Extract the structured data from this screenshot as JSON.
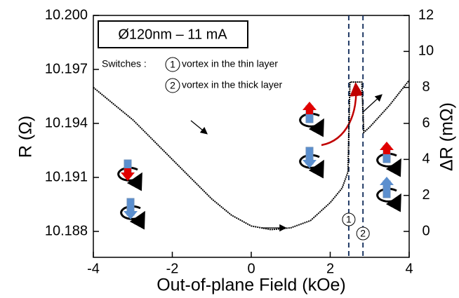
{
  "chart_data": {
    "type": "line",
    "title": "Ø120nm – 11 mA",
    "x_label": "Out-of-plane Field (kOe)",
    "y_label": "R (Ω)",
    "y2_label": "ΔR (mΩ)",
    "annotations": {
      "switches": "Switches :",
      "switch_labels": [
        "1",
        "2"
      ],
      "switch_texts": [
        "vortex in the thin layer",
        "vortex in the thick layer"
      ]
    },
    "switch_fields": [
      2.47,
      2.83
    ],
    "x": [
      -4,
      -3.5,
      -3,
      -2.5,
      -2,
      -1.5,
      -1,
      -0.5,
      0,
      0.5,
      1,
      1.5,
      2,
      2.3,
      2.45,
      2.5,
      2.8,
      2.85,
      3,
      3.5,
      4
    ],
    "values": [
      10.196,
      10.1951,
      10.1942,
      10.1931,
      10.192,
      10.1909,
      10.1898,
      10.1889,
      10.1883,
      10.1881,
      10.1882,
      10.1886,
      10.1896,
      10.1904,
      10.1913,
      10.1963,
      10.1963,
      10.1935,
      10.1938,
      10.195,
      10.1964
    ],
    "color": "#000000",
    "xlim": [
      -4,
      4
    ],
    "xticks": [
      -4,
      -2,
      0,
      2,
      4
    ],
    "ylim": [
      10.18656,
      10.2
    ],
    "yticks": [
      10.188,
      10.191,
      10.194,
      10.197,
      {
        "value": 10.2,
        "label": "10.200"
      }
    ],
    "y2lim": [
      -1.44,
      12
    ],
    "y2ticks": [
      0,
      2,
      4,
      6,
      8,
      10,
      12
    ]
  }
}
